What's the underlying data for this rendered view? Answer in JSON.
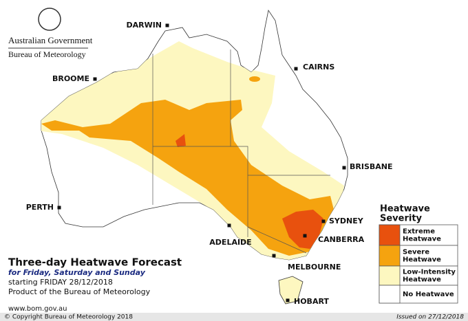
{
  "header": {
    "government": "Australian Government",
    "agency": "Bureau of Meteorology"
  },
  "cities": [
    "DARWIN",
    "CAIRNS",
    "BROOME",
    "BRISBANE",
    "PERTH",
    "SYDNEY",
    "CANBERRA",
    "ADELAIDE",
    "MELBOURNE",
    "HOBART"
  ],
  "title_block": {
    "title": "Three-day Heatwave Forecast",
    "subtitle": "for Friday, Saturday and Sunday",
    "start": "starting FRIDAY 28/12/2018",
    "product": "Product of the Bureau of Meteorology",
    "url": "www.bom.gov.au"
  },
  "legend": {
    "title": [
      "Heatwave",
      "Severity"
    ],
    "items": [
      {
        "label": [
          "Extreme",
          "Heatwave"
        ],
        "color": "#e8510e"
      },
      {
        "label": [
          "Severe",
          "Heatwave"
        ],
        "color": "#f5a30f"
      },
      {
        "label": [
          "Low-Intensity",
          "Heatwave"
        ],
        "color": "#fdf7c0"
      },
      {
        "label": [
          "No Heatwave"
        ],
        "color": "#ffffff"
      }
    ]
  },
  "footer": {
    "copyright": "© Copyright Bureau of Meteorology 2018",
    "issued": "Issued on 27/12/2018"
  }
}
